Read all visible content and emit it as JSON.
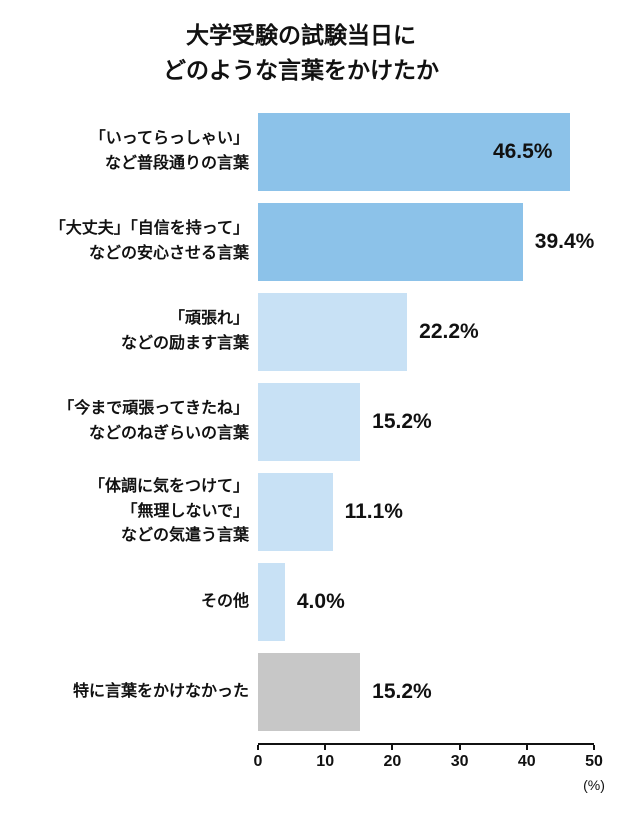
{
  "header": {
    "title": "大学受験の試験当日に\nどのような言葉をかけたか"
  },
  "chart_data": {
    "type": "bar",
    "orientation": "horizontal",
    "title": "大学受験の試験当日にどのような言葉をかけたか",
    "xlabel": "",
    "ylabel": "",
    "xlim": [
      0,
      50
    ],
    "x_unit": "(%)",
    "axis_ticks": [
      "0",
      "10",
      "20",
      "30",
      "40",
      "50"
    ],
    "grid": false,
    "legend": "none",
    "colors": {
      "emphasis_blue": "#8cc2e9",
      "light_blue": "#c8e1f5",
      "gray": "#c7c7c7"
    },
    "rows": [
      {
        "label": "「いってらっしゃい」\nなど普段通りの言葉",
        "value": 46.5,
        "display": "46.5%",
        "color": "#8cc2e9",
        "label_inside": true
      },
      {
        "label": "「大丈夫」「自信を持って」\nなどの安心させる言葉",
        "value": 39.4,
        "display": "39.4%",
        "color": "#8cc2e9",
        "label_inside": false
      },
      {
        "label": "「頑張れ」\nなどの励ます言葉",
        "value": 22.2,
        "display": "22.2%",
        "color": "#c8e1f5",
        "label_inside": false
      },
      {
        "label": "「今まで頑張ってきたね」\nなどのねぎらいの言葉",
        "value": 15.2,
        "display": "15.2%",
        "color": "#c8e1f5",
        "label_inside": false
      },
      {
        "label": "「体調に気をつけて」\n「無理しないで」\nなどの気遣う言葉",
        "value": 11.1,
        "display": "11.1%",
        "color": "#c8e1f5",
        "label_inside": false
      },
      {
        "label": "その他",
        "value": 4.0,
        "display": "4.0%",
        "color": "#c8e1f5",
        "label_inside": false
      },
      {
        "label": "特に言葉をかけなかった",
        "value": 15.2,
        "display": "15.2%",
        "color": "#c7c7c7",
        "label_inside": false
      }
    ]
  }
}
